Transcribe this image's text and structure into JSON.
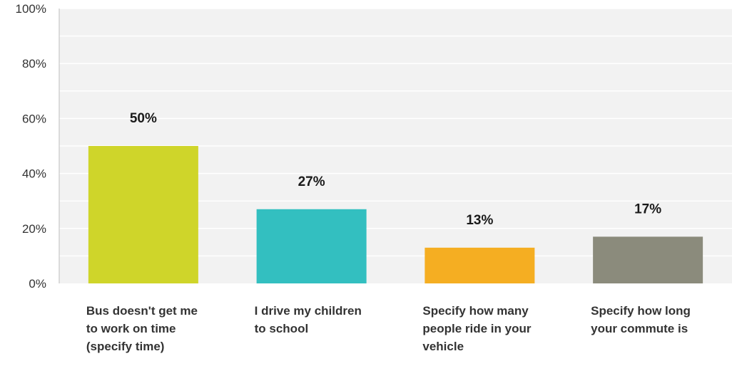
{
  "chart_data": {
    "type": "bar",
    "categories": [
      "Bus doesn't get me to work on time (specify time)",
      "I drive my children to school",
      "Specify how many people ride in your vehicle",
      "Specify how long your commute is"
    ],
    "values": [
      50,
      27,
      13,
      17
    ],
    "data_labels": [
      "50%",
      "27%",
      "13%",
      "17%"
    ],
    "colors": [
      "#cfd52a",
      "#33bfc0",
      "#f5ae22",
      "#8b8b7c"
    ],
    "ylim": [
      0,
      100
    ],
    "y_ticks": [
      {
        "value": 0,
        "label": "0%"
      },
      {
        "value": 20,
        "label": "20%"
      },
      {
        "value": 40,
        "label": "40%"
      },
      {
        "value": 60,
        "label": "60%"
      },
      {
        "value": 80,
        "label": "80%"
      },
      {
        "value": 100,
        "label": "100%"
      }
    ],
    "title": "",
    "xlabel": "",
    "ylabel": "",
    "grid": true,
    "plot_background": "#f2f2f2",
    "gridline_color": "#ffffff"
  }
}
